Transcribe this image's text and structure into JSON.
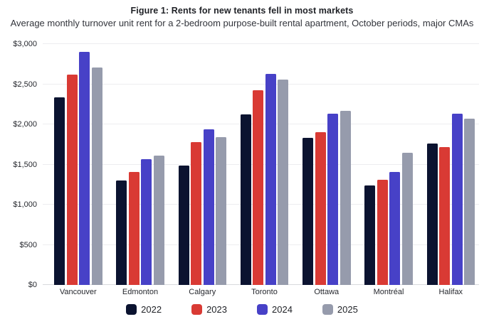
{
  "chart_data": {
    "type": "bar",
    "title": "Figure 1: Rents for new tenants fell in most markets",
    "subtitle": "Average monthly turnover unit rent for a 2-bedroom purpose-built rental apartment, October periods, major CMAs",
    "categories": [
      "Vancouver",
      "Edmonton",
      "Calgary",
      "Toronto",
      "Ottawa",
      "Montréal",
      "Halifax"
    ],
    "series": [
      {
        "name": "2022",
        "color": "#0b1330",
        "values": [
          2340,
          1300,
          1485,
          2120,
          1830,
          1235,
          1765
        ]
      },
      {
        "name": "2023",
        "color": "#d93a34",
        "values": [
          2620,
          1405,
          1775,
          2425,
          1905,
          1310,
          1715
        ]
      },
      {
        "name": "2024",
        "color": "#4741c7",
        "values": [
          2900,
          1565,
          1935,
          2630,
          2130,
          1410,
          2135
        ]
      },
      {
        "name": "2025",
        "color": "#969bac",
        "values": [
          2710,
          1610,
          1840,
          2560,
          2165,
          1645,
          2075
        ]
      }
    ],
    "xlabel": "",
    "ylabel": "",
    "ylim": [
      0,
      3000
    ],
    "ytick_step": 500,
    "ytick_labels": [
      "$0",
      "$500",
      "$1,000",
      "$1,500",
      "$2,000",
      "$2,500",
      "$3,000"
    ],
    "currency_prefix": "$",
    "grid": true,
    "legend_position": "bottom"
  }
}
